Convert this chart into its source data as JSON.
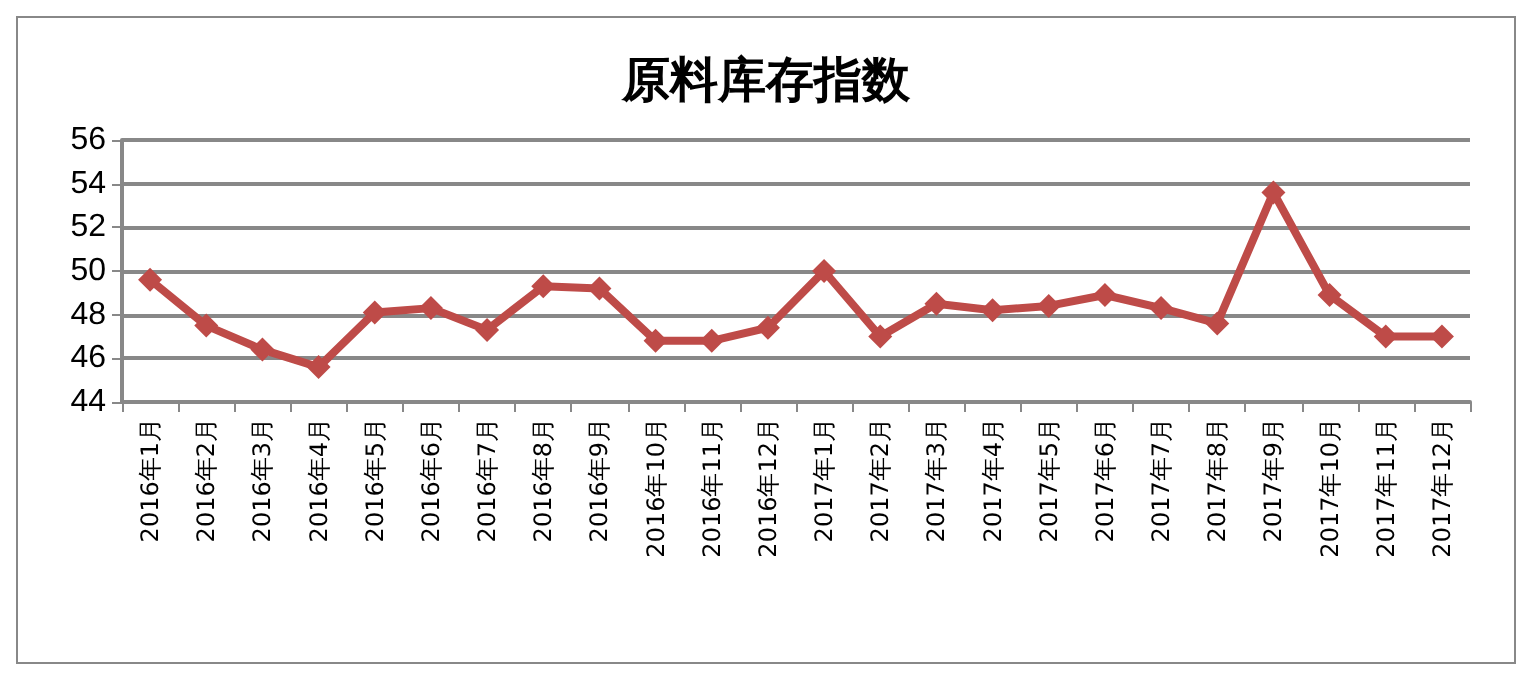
{
  "chart_data": {
    "type": "line",
    "title": "原料库存指数",
    "categories": [
      "2016年1月",
      "2016年2月",
      "2016年3月",
      "2016年4月",
      "2016年5月",
      "2016年6月",
      "2016年7月",
      "2016年8月",
      "2016年9月",
      "2016年10月",
      "2016年11月",
      "2016年12月",
      "2017年1月",
      "2017年2月",
      "2017年3月",
      "2017年4月",
      "2017年5月",
      "2017年6月",
      "2017年7月",
      "2017年8月",
      "2017年9月",
      "2017年10月",
      "2017年11月",
      "2017年12月"
    ],
    "series": [
      {
        "color": "#be4b48",
        "values": [
          49.6,
          47.5,
          46.4,
          45.6,
          48.1,
          48.3,
          47.3,
          49.3,
          49.2,
          46.8,
          46.8,
          47.4,
          50.0,
          47.0,
          48.5,
          48.2,
          48.4,
          48.9,
          48.3,
          47.6,
          53.6,
          48.9,
          47.0,
          47.0
        ]
      }
    ],
    "ylim": [
      44,
      56
    ],
    "yticks": [
      44,
      46,
      48,
      50,
      52,
      54,
      56
    ],
    "grid": "y",
    "marker": "diamond",
    "line_style": "solid"
  }
}
